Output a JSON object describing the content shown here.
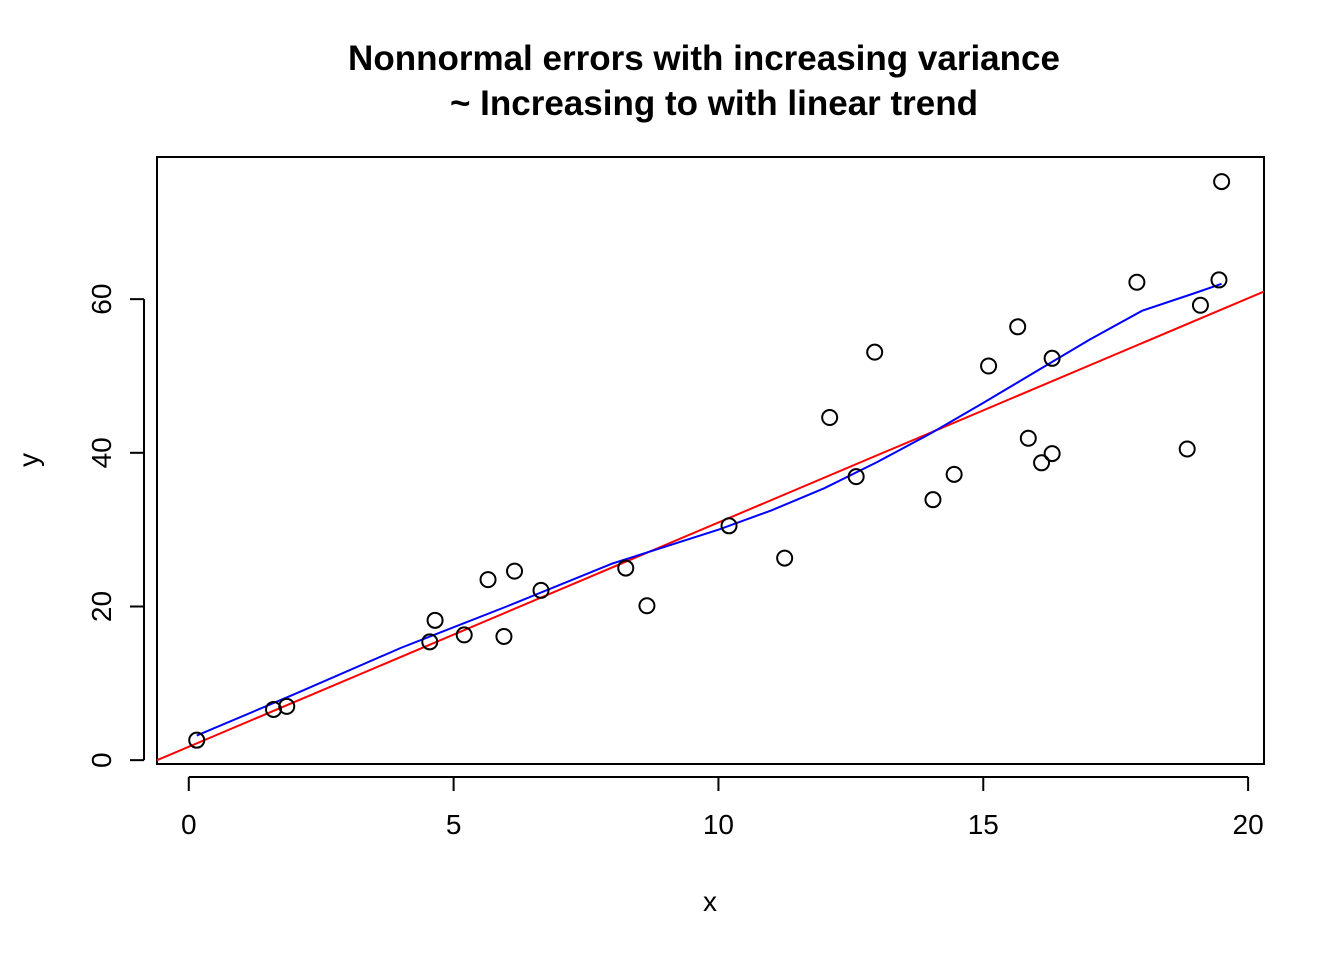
{
  "chart_data": {
    "type": "scatter",
    "title": "Nonnormal errors with increasing variance",
    "subtitle": "~ Increasing to with linear trend",
    "xlabel": "x",
    "ylabel": "y",
    "xlim": [
      -0.6,
      20.3
    ],
    "ylim": [
      -0.5,
      78.5
    ],
    "x_ticks": [
      0,
      5,
      10,
      15,
      20
    ],
    "y_ticks": [
      0,
      20,
      40,
      60
    ],
    "x_tick_labels": [
      "0",
      "5",
      "10",
      "15",
      "20"
    ],
    "y_tick_labels": [
      "0",
      "20",
      "40",
      "60"
    ],
    "grid": false,
    "points": [
      {
        "x": 0.15,
        "y": 2.6
      },
      {
        "x": 1.6,
        "y": 6.6
      },
      {
        "x": 1.85,
        "y": 7.0
      },
      {
        "x": 4.55,
        "y": 15.4
      },
      {
        "x": 4.65,
        "y": 18.2
      },
      {
        "x": 5.2,
        "y": 16.3
      },
      {
        "x": 5.65,
        "y": 23.5
      },
      {
        "x": 5.95,
        "y": 16.1
      },
      {
        "x": 6.15,
        "y": 24.6
      },
      {
        "x": 6.65,
        "y": 22.1
      },
      {
        "x": 8.25,
        "y": 25.0
      },
      {
        "x": 8.65,
        "y": 20.1
      },
      {
        "x": 10.2,
        "y": 30.5
      },
      {
        "x": 11.25,
        "y": 26.3
      },
      {
        "x": 12.1,
        "y": 44.6
      },
      {
        "x": 12.6,
        "y": 36.9
      },
      {
        "x": 12.95,
        "y": 53.1
      },
      {
        "x": 14.05,
        "y": 33.9
      },
      {
        "x": 14.45,
        "y": 37.2
      },
      {
        "x": 15.1,
        "y": 51.3
      },
      {
        "x": 15.65,
        "y": 56.4
      },
      {
        "x": 15.85,
        "y": 41.9
      },
      {
        "x": 16.1,
        "y": 38.7
      },
      {
        "x": 16.3,
        "y": 52.3
      },
      {
        "x": 16.3,
        "y": 39.9
      },
      {
        "x": 17.9,
        "y": 62.2
      },
      {
        "x": 18.85,
        "y": 40.5
      },
      {
        "x": 19.1,
        "y": 59.2
      },
      {
        "x": 19.45,
        "y": 62.5
      },
      {
        "x": 19.5,
        "y": 75.3
      }
    ],
    "series": [
      {
        "type": "regression-line",
        "color": "#ff0000",
        "x": [
          -0.6,
          20.3
        ],
        "y": [
          0.0,
          61.0
        ]
      },
      {
        "type": "smooth-line",
        "color": "#0000ff",
        "x": [
          0.15,
          2.0,
          4.0,
          6.0,
          8.0,
          10.0,
          11.0,
          12.0,
          13.0,
          14.0,
          15.0,
          16.0,
          17.0,
          18.0,
          19.0,
          19.5
        ],
        "y": [
          3.2,
          8.6,
          14.6,
          20.0,
          25.6,
          30.0,
          32.5,
          35.4,
          38.8,
          42.5,
          46.5,
          50.6,
          54.7,
          58.5,
          60.8,
          62.0
        ]
      }
    ],
    "colors": {
      "points": "#000000",
      "regression": "#ff0000",
      "smooth": "#0000ff",
      "frame": "#000000"
    }
  }
}
